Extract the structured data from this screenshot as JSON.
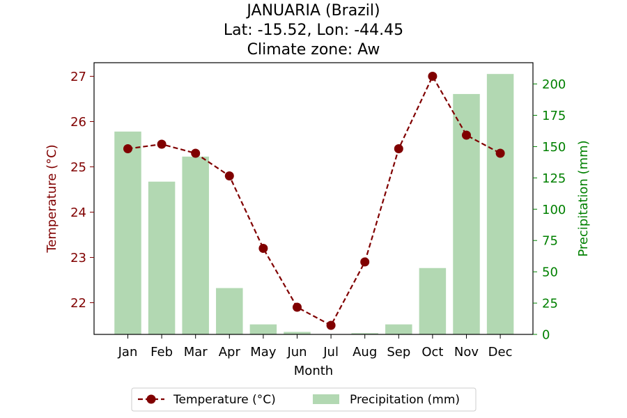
{
  "chart_data": {
    "type": "bar+line",
    "title_lines": [
      "JANUARIA (Brazil)",
      "Lat: -15.52, Lon: -44.45",
      "Climate zone: Aw"
    ],
    "categories": [
      "Jan",
      "Feb",
      "Mar",
      "Apr",
      "May",
      "Jun",
      "Jul",
      "Aug",
      "Sep",
      "Oct",
      "Nov",
      "Dec"
    ],
    "xlabel": "Month",
    "y_left": {
      "label": "Temperature (°C)",
      "range": [
        21.3,
        27.3
      ],
      "ticks": [
        22,
        23,
        24,
        25,
        26,
        27
      ],
      "color": "#800000"
    },
    "y_right": {
      "label": "Precipitation (mm)",
      "range": [
        0,
        217
      ],
      "ticks": [
        0,
        25,
        50,
        75,
        100,
        125,
        150,
        175,
        200
      ],
      "color": "#008000"
    },
    "series": [
      {
        "name": "Temperature (°C)",
        "kind": "line",
        "axis": "left",
        "color": "#800000",
        "style": "dashed with circle markers",
        "values": [
          25.4,
          25.5,
          25.3,
          24.8,
          23.2,
          21.9,
          21.5,
          22.9,
          25.4,
          27.0,
          25.7,
          25.3
        ]
      },
      {
        "name": "Precipitation (mm)",
        "kind": "bar",
        "axis": "right",
        "color": "#b2d8b2",
        "values": [
          162,
          122,
          142,
          37,
          8,
          2,
          0,
          1,
          8,
          53,
          192,
          208
        ]
      }
    ],
    "legend": {
      "placement": "bottom-center",
      "items": [
        "Temperature (°C)",
        "Precipitation (mm)"
      ]
    },
    "grid": false
  }
}
